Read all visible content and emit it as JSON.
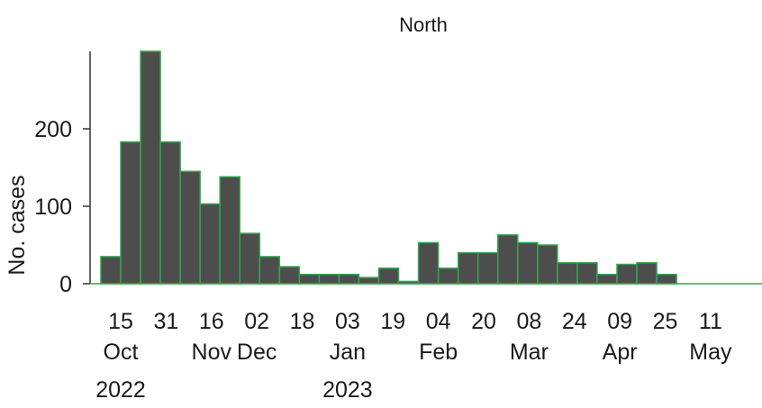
{
  "chart_data": {
    "type": "bar",
    "facet_title": "North",
    "ylabel": "No. cases",
    "ylim": [
      0,
      300
    ],
    "yticks": [
      0,
      100,
      200
    ],
    "grid": false,
    "bar_fill": "#4d4d4d",
    "bar_edge": "#2fa84f",
    "x_tick_labels": [
      {
        "day": "15",
        "month": "Oct",
        "year": "2022"
      },
      {
        "day": "31",
        "month": "",
        "year": ""
      },
      {
        "day": "16",
        "month": "Nov",
        "year": ""
      },
      {
        "day": "02",
        "month": "Dec",
        "year": ""
      },
      {
        "day": "18",
        "month": "",
        "year": ""
      },
      {
        "day": "03",
        "month": "Jan",
        "year": "2023"
      },
      {
        "day": "19",
        "month": "",
        "year": ""
      },
      {
        "day": "04",
        "month": "Feb",
        "year": ""
      },
      {
        "day": "20",
        "month": "",
        "year": ""
      },
      {
        "day": "08",
        "month": "Mar",
        "year": ""
      },
      {
        "day": "24",
        "month": "",
        "year": ""
      },
      {
        "day": "09",
        "month": "Apr",
        "year": ""
      },
      {
        "day": "25",
        "month": "",
        "year": ""
      },
      {
        "day": "11",
        "month": "May",
        "year": ""
      }
    ],
    "bars": [
      {
        "week_start": "2022-10-08",
        "value": 35
      },
      {
        "week_start": "2022-10-15",
        "value": 183
      },
      {
        "week_start": "2022-10-22",
        "value": 300
      },
      {
        "week_start": "2022-10-29",
        "value": 183
      },
      {
        "week_start": "2022-11-05",
        "value": 145
      },
      {
        "week_start": "2022-11-12",
        "value": 103
      },
      {
        "week_start": "2022-11-19",
        "value": 138
      },
      {
        "week_start": "2022-11-26",
        "value": 65
      },
      {
        "week_start": "2022-12-03",
        "value": 35
      },
      {
        "week_start": "2022-12-10",
        "value": 22
      },
      {
        "week_start": "2022-12-17",
        "value": 12
      },
      {
        "week_start": "2022-12-24",
        "value": 12
      },
      {
        "week_start": "2022-12-31",
        "value": 12
      },
      {
        "week_start": "2023-01-07",
        "value": 8
      },
      {
        "week_start": "2023-01-14",
        "value": 20
      },
      {
        "week_start": "2023-01-21",
        "value": 3
      },
      {
        "week_start": "2023-01-28",
        "value": 53
      },
      {
        "week_start": "2023-02-04",
        "value": 20
      },
      {
        "week_start": "2023-02-11",
        "value": 40
      },
      {
        "week_start": "2023-02-18",
        "value": 40
      },
      {
        "week_start": "2023-02-25",
        "value": 63
      },
      {
        "week_start": "2023-03-04",
        "value": 53
      },
      {
        "week_start": "2023-03-11",
        "value": 50
      },
      {
        "week_start": "2023-03-18",
        "value": 27
      },
      {
        "week_start": "2023-03-25",
        "value": 27
      },
      {
        "week_start": "2023-04-01",
        "value": 12
      },
      {
        "week_start": "2023-04-08",
        "value": 25
      },
      {
        "week_start": "2023-04-15",
        "value": 27
      },
      {
        "week_start": "2023-04-22",
        "value": 12
      }
    ]
  }
}
